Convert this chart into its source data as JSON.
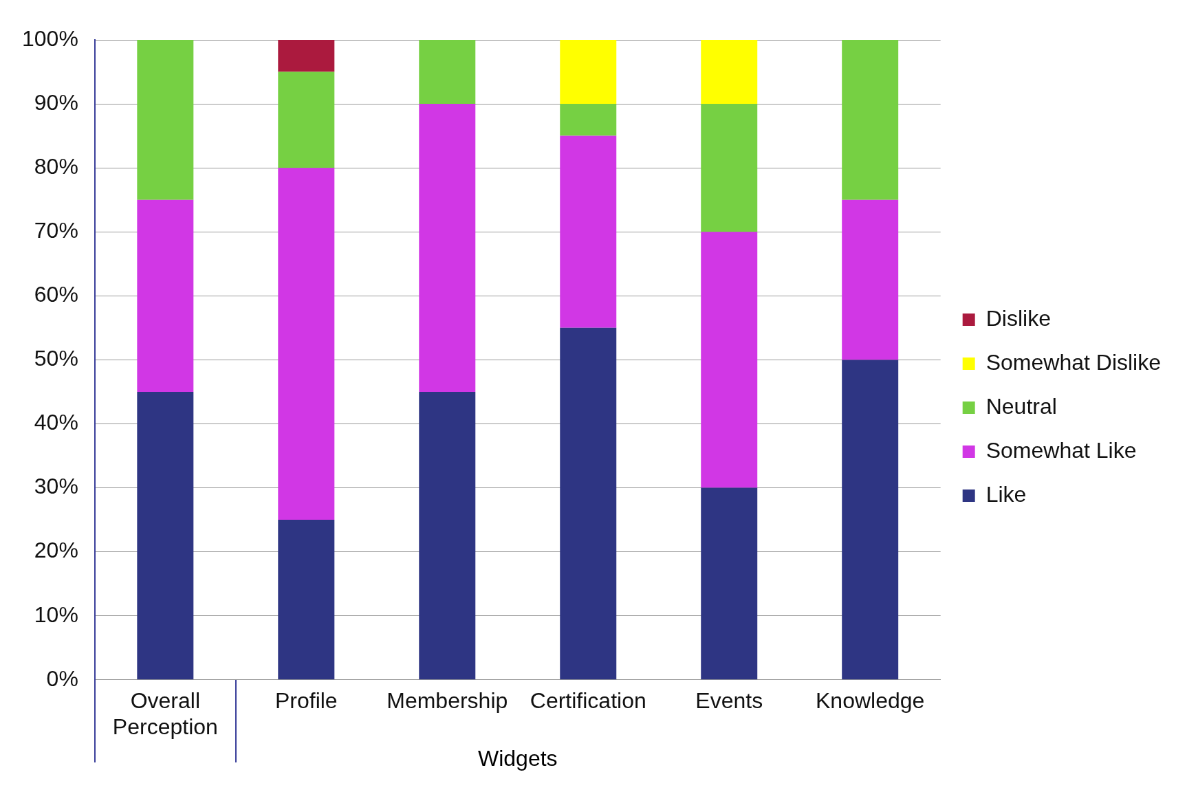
{
  "chart_data": {
    "type": "bar",
    "stacked": true,
    "xlabel": "Widgets",
    "categories": [
      "Overall Perception",
      "Profile",
      "Membership",
      "Certification",
      "Events",
      "Knowledge"
    ],
    "series": [
      {
        "name": "Like",
        "color": "#2e3583",
        "values": [
          45,
          25,
          45,
          55,
          30,
          50
        ]
      },
      {
        "name": "Somewhat Like",
        "color": "#d137e5",
        "values": [
          30,
          55,
          45,
          30,
          40,
          25
        ]
      },
      {
        "name": "Neutral",
        "color": "#76d043",
        "values": [
          25,
          15,
          10,
          5,
          20,
          25
        ]
      },
      {
        "name": "Somewhat Dislike",
        "color": "#ffff00",
        "values": [
          0,
          0,
          0,
          10,
          10,
          0
        ]
      },
      {
        "name": "Dislike",
        "color": "#ab1a3e",
        "values": [
          0,
          5,
          0,
          0,
          0,
          0
        ]
      }
    ],
    "ylim": [
      0,
      100
    ],
    "yticks": [
      {
        "value": 0,
        "label": "0%"
      },
      {
        "value": 10,
        "label": "10%"
      },
      {
        "value": 20,
        "label": "20%"
      },
      {
        "value": 30,
        "label": "30%"
      },
      {
        "value": 40,
        "label": "40%"
      },
      {
        "value": 50,
        "label": "50%"
      },
      {
        "value": 60,
        "label": "60%"
      },
      {
        "value": 70,
        "label": "70%"
      },
      {
        "value": 80,
        "label": "80%"
      },
      {
        "value": 90,
        "label": "90%"
      },
      {
        "value": 100,
        "label": "100%"
      }
    ],
    "grid": "y",
    "legend": "right"
  }
}
